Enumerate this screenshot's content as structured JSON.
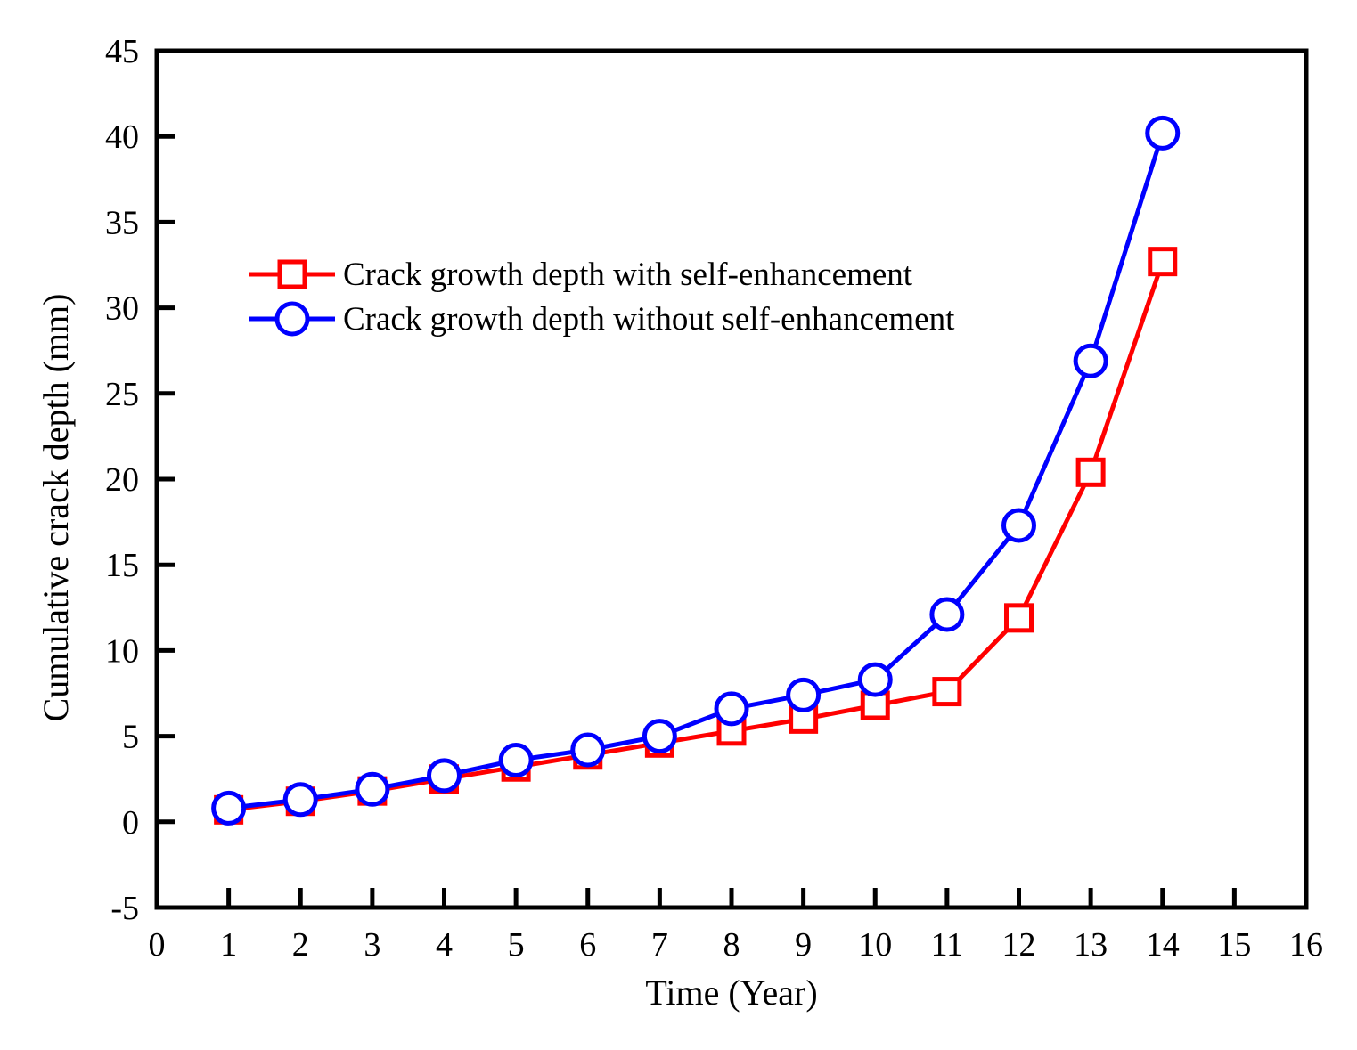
{
  "chart_data": {
    "type": "line",
    "title": "",
    "xlabel": "Time (Year)",
    "ylabel": "Cumulative crack depth (mm)",
    "xlim": [
      0,
      16
    ],
    "ylim": [
      -5,
      45
    ],
    "xticks": [
      0,
      1,
      2,
      3,
      4,
      5,
      6,
      7,
      8,
      9,
      10,
      11,
      12,
      13,
      14,
      15,
      16
    ],
    "yticks": [
      -5,
      0,
      5,
      10,
      15,
      20,
      25,
      30,
      35,
      40,
      45
    ],
    "grid": false,
    "legend_position": "upper-left",
    "x": [
      1,
      2,
      3,
      4,
      5,
      6,
      7,
      8,
      9,
      10,
      11,
      12,
      13,
      14
    ],
    "series": [
      {
        "name": "Crack growth depth with self-enhancement",
        "color": "#ff0000",
        "marker": "square",
        "values": [
          0.7,
          1.2,
          1.8,
          2.5,
          3.2,
          3.9,
          4.6,
          5.3,
          6.0,
          6.8,
          7.6,
          11.9,
          20.4,
          32.7
        ]
      },
      {
        "name": "Crack growth depth without self-enhancement",
        "color": "#0000ff",
        "marker": "circle",
        "values": [
          0.8,
          1.3,
          1.9,
          2.7,
          3.6,
          4.2,
          5.0,
          6.6,
          7.4,
          8.3,
          12.1,
          17.3,
          26.9,
          40.2
        ]
      }
    ]
  }
}
